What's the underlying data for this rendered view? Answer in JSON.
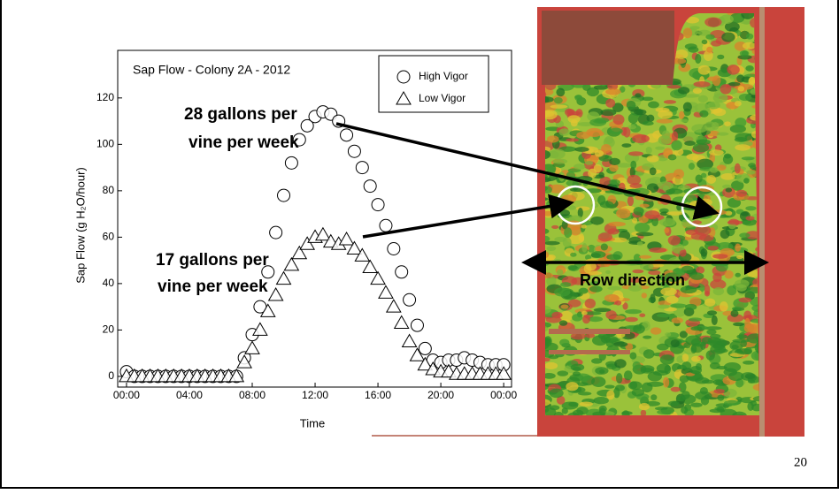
{
  "chart_data": {
    "type": "scatter",
    "title": "Sap Flow - Colony 2A - 2012",
    "x_label": "Time",
    "y_label": "Sap Flow (g H₂O/hour)",
    "x": [
      0,
      0.5,
      1,
      1.5,
      2,
      2.5,
      3,
      3.5,
      4,
      4.5,
      5,
      5.5,
      6,
      6.5,
      7,
      7.5,
      8,
      8.5,
      9,
      9.5,
      10,
      10.5,
      11,
      11.5,
      12,
      12.5,
      13,
      13.5,
      14,
      14.5,
      15,
      15.5,
      16,
      16.5,
      17,
      17.5,
      18,
      18.5,
      19,
      19.5,
      20,
      20.5,
      21,
      21.5,
      22,
      22.5,
      23,
      23.5,
      24
    ],
    "series": [
      {
        "name": "High Vigor",
        "marker": "circle",
        "color": "#000000",
        "values": [
          2,
          0,
          0,
          0,
          0,
          0,
          0,
          0,
          0,
          0,
          0,
          0,
          0,
          0,
          0,
          8,
          18,
          30,
          45,
          62,
          78,
          92,
          102,
          108,
          112,
          114,
          113,
          110,
          104,
          97,
          90,
          82,
          74,
          65,
          55,
          45,
          33,
          22,
          12,
          7,
          6,
          7,
          7,
          8,
          7,
          6,
          5,
          5,
          5
        ]
      },
      {
        "name": "Low Vigor",
        "marker": "triangle",
        "color": "#000000",
        "values": [
          0,
          0,
          0,
          0,
          0,
          0,
          0,
          0,
          0,
          0,
          0,
          0,
          0,
          0,
          0,
          6,
          12,
          20,
          28,
          35,
          42,
          48,
          53,
          57,
          60,
          61,
          58,
          57,
          59,
          55,
          52,
          47,
          42,
          36,
          30,
          23,
          15,
          9,
          5,
          3,
          2,
          2,
          1,
          1,
          1,
          1,
          1,
          1,
          1
        ]
      }
    ],
    "xlim": [
      -0.56,
      24.5
    ],
    "ylim": [
      -4.6,
      140.5
    ],
    "xticks": [
      {
        "value": 0,
        "label": "00:00"
      },
      {
        "value": 4,
        "label": "04:00"
      },
      {
        "value": 8,
        "label": "08:00"
      },
      {
        "value": 12,
        "label": "12:00"
      },
      {
        "value": 16,
        "label": "16:00"
      },
      {
        "value": 20,
        "label": "20:00"
      },
      {
        "value": 24,
        "label": "00:00"
      }
    ],
    "yticks": [
      0,
      20,
      40,
      60,
      80,
      100,
      120
    ],
    "annotations": [
      [
        "28 gallons per",
        "vine per week"
      ],
      [
        "17 gallons per",
        "vine per week"
      ]
    ]
  },
  "image_label": "Row direction",
  "page_number": "20"
}
